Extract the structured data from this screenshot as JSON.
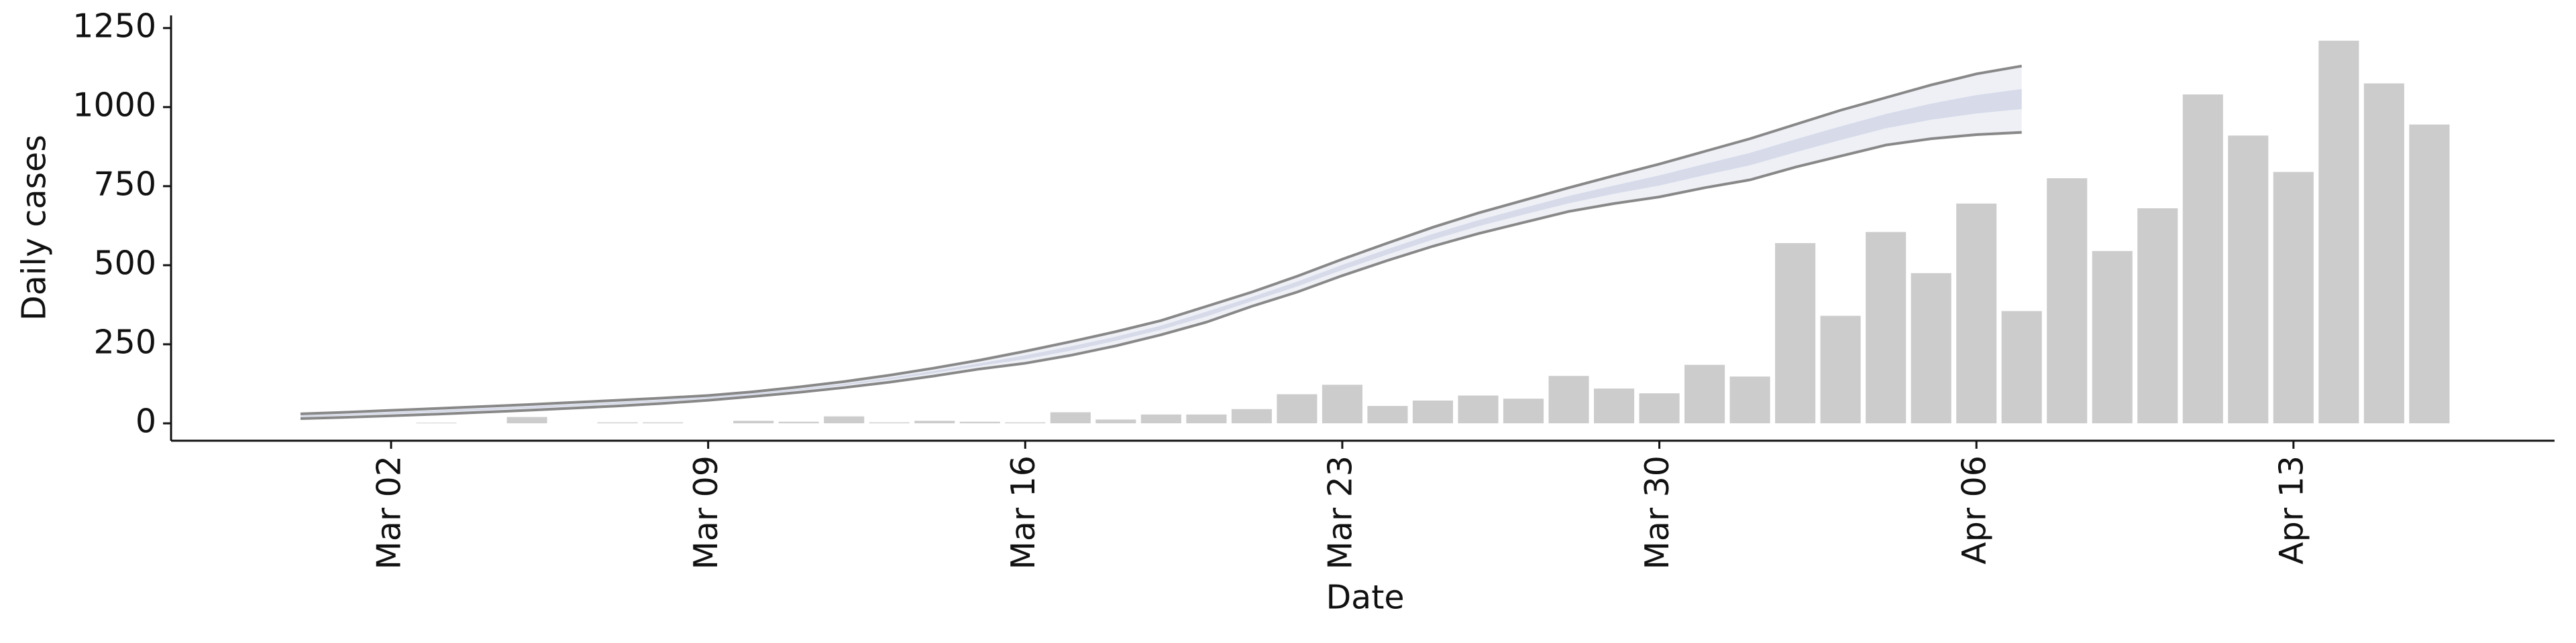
{
  "chart_data": {
    "type": "bar-line",
    "xlabel": "Date",
    "ylabel": "Daily cases",
    "x": [
      "Feb 29",
      "Mar 01",
      "Mar 02",
      "Mar 03",
      "Mar 04",
      "Mar 05",
      "Mar 06",
      "Mar 07",
      "Mar 08",
      "Mar 09",
      "Mar 10",
      "Mar 11",
      "Mar 12",
      "Mar 13",
      "Mar 14",
      "Mar 15",
      "Mar 16",
      "Mar 17",
      "Mar 18",
      "Mar 19",
      "Mar 20",
      "Mar 21",
      "Mar 22",
      "Mar 23",
      "Mar 24",
      "Mar 25",
      "Mar 26",
      "Mar 27",
      "Mar 28",
      "Mar 29",
      "Mar 30",
      "Mar 31",
      "Apr 01",
      "Apr 02",
      "Apr 03",
      "Apr 04",
      "Apr 05",
      "Apr 06",
      "Apr 07",
      "Apr 08",
      "Apr 09",
      "Apr 10",
      "Apr 11",
      "Apr 12",
      "Apr 13",
      "Apr 14",
      "Apr 15",
      "Apr 16"
    ],
    "xticks": [
      "Mar 02",
      "Mar 09",
      "Mar 16",
      "Mar 23",
      "Mar 30",
      "Apr 06",
      "Apr 13"
    ],
    "bars": {
      "color": "#cccccc",
      "values": [
        0,
        0,
        0,
        2,
        0,
        20,
        0,
        3,
        3,
        0,
        8,
        5,
        22,
        3,
        8,
        5,
        3,
        35,
        12,
        28,
        28,
        45,
        92,
        122,
        55,
        72,
        88,
        78,
        150,
        110,
        95,
        185,
        148,
        570,
        340,
        605,
        475,
        695,
        355,
        775,
        545,
        680,
        1040,
        910,
        795,
        1210,
        1075,
        945
      ]
    },
    "band_outer": {
      "color": "#eef0f6",
      "upper": [
        30,
        35,
        41,
        47,
        53,
        59,
        66,
        73,
        80,
        88,
        100,
        115,
        132,
        152,
        175,
        200,
        228,
        258,
        290,
        325,
        370,
        415,
        465,
        519,
        570,
        620,
        665,
        705,
        745,
        783,
        820,
        860,
        900,
        945,
        990,
        1030,
        1070,
        1105,
        1130,
        null,
        null,
        null,
        null,
        null,
        null,
        null,
        null,
        null
      ],
      "lower": [
        15,
        19,
        24,
        29,
        35,
        41,
        48,
        55,
        63,
        73,
        85,
        98,
        113,
        130,
        150,
        172,
        190,
        215,
        245,
        280,
        320,
        370,
        415,
        467,
        515,
        560,
        600,
        635,
        670,
        695,
        716,
        745,
        770,
        810,
        845,
        880,
        900,
        913,
        920,
        null,
        null,
        null,
        null,
        null,
        null,
        null,
        null,
        null
      ]
    },
    "band_inner": {
      "color": "#d6dae9",
      "upper": [
        25,
        29,
        35,
        41,
        47,
        53,
        60,
        67,
        74,
        83,
        95,
        109,
        125,
        144,
        166,
        190,
        215,
        243,
        274,
        309,
        353,
        399,
        448,
        501,
        551,
        599,
        642,
        681,
        719,
        752,
        784,
        820,
        855,
        898,
        939,
        978,
        1011,
        1038,
        1057,
        null,
        null,
        null,
        null,
        null,
        null,
        null,
        null,
        null
      ],
      "lower": [
        20,
        25,
        30,
        35,
        41,
        47,
        54,
        61,
        69,
        78,
        90,
        104,
        120,
        138,
        159,
        182,
        203,
        230,
        261,
        296,
        338,
        386,
        433,
        485,
        534,
        581,
        623,
        660,
        696,
        726,
        752,
        785,
        816,
        857,
        896,
        933,
        960,
        980,
        994,
        null,
        null,
        null,
        null,
        null,
        null,
        null,
        null,
        null
      ]
    },
    "line_color": "#888888",
    "ylim": [
      -55,
      1290
    ],
    "yticks": [
      0,
      250,
      500,
      750,
      1000,
      1250
    ]
  }
}
